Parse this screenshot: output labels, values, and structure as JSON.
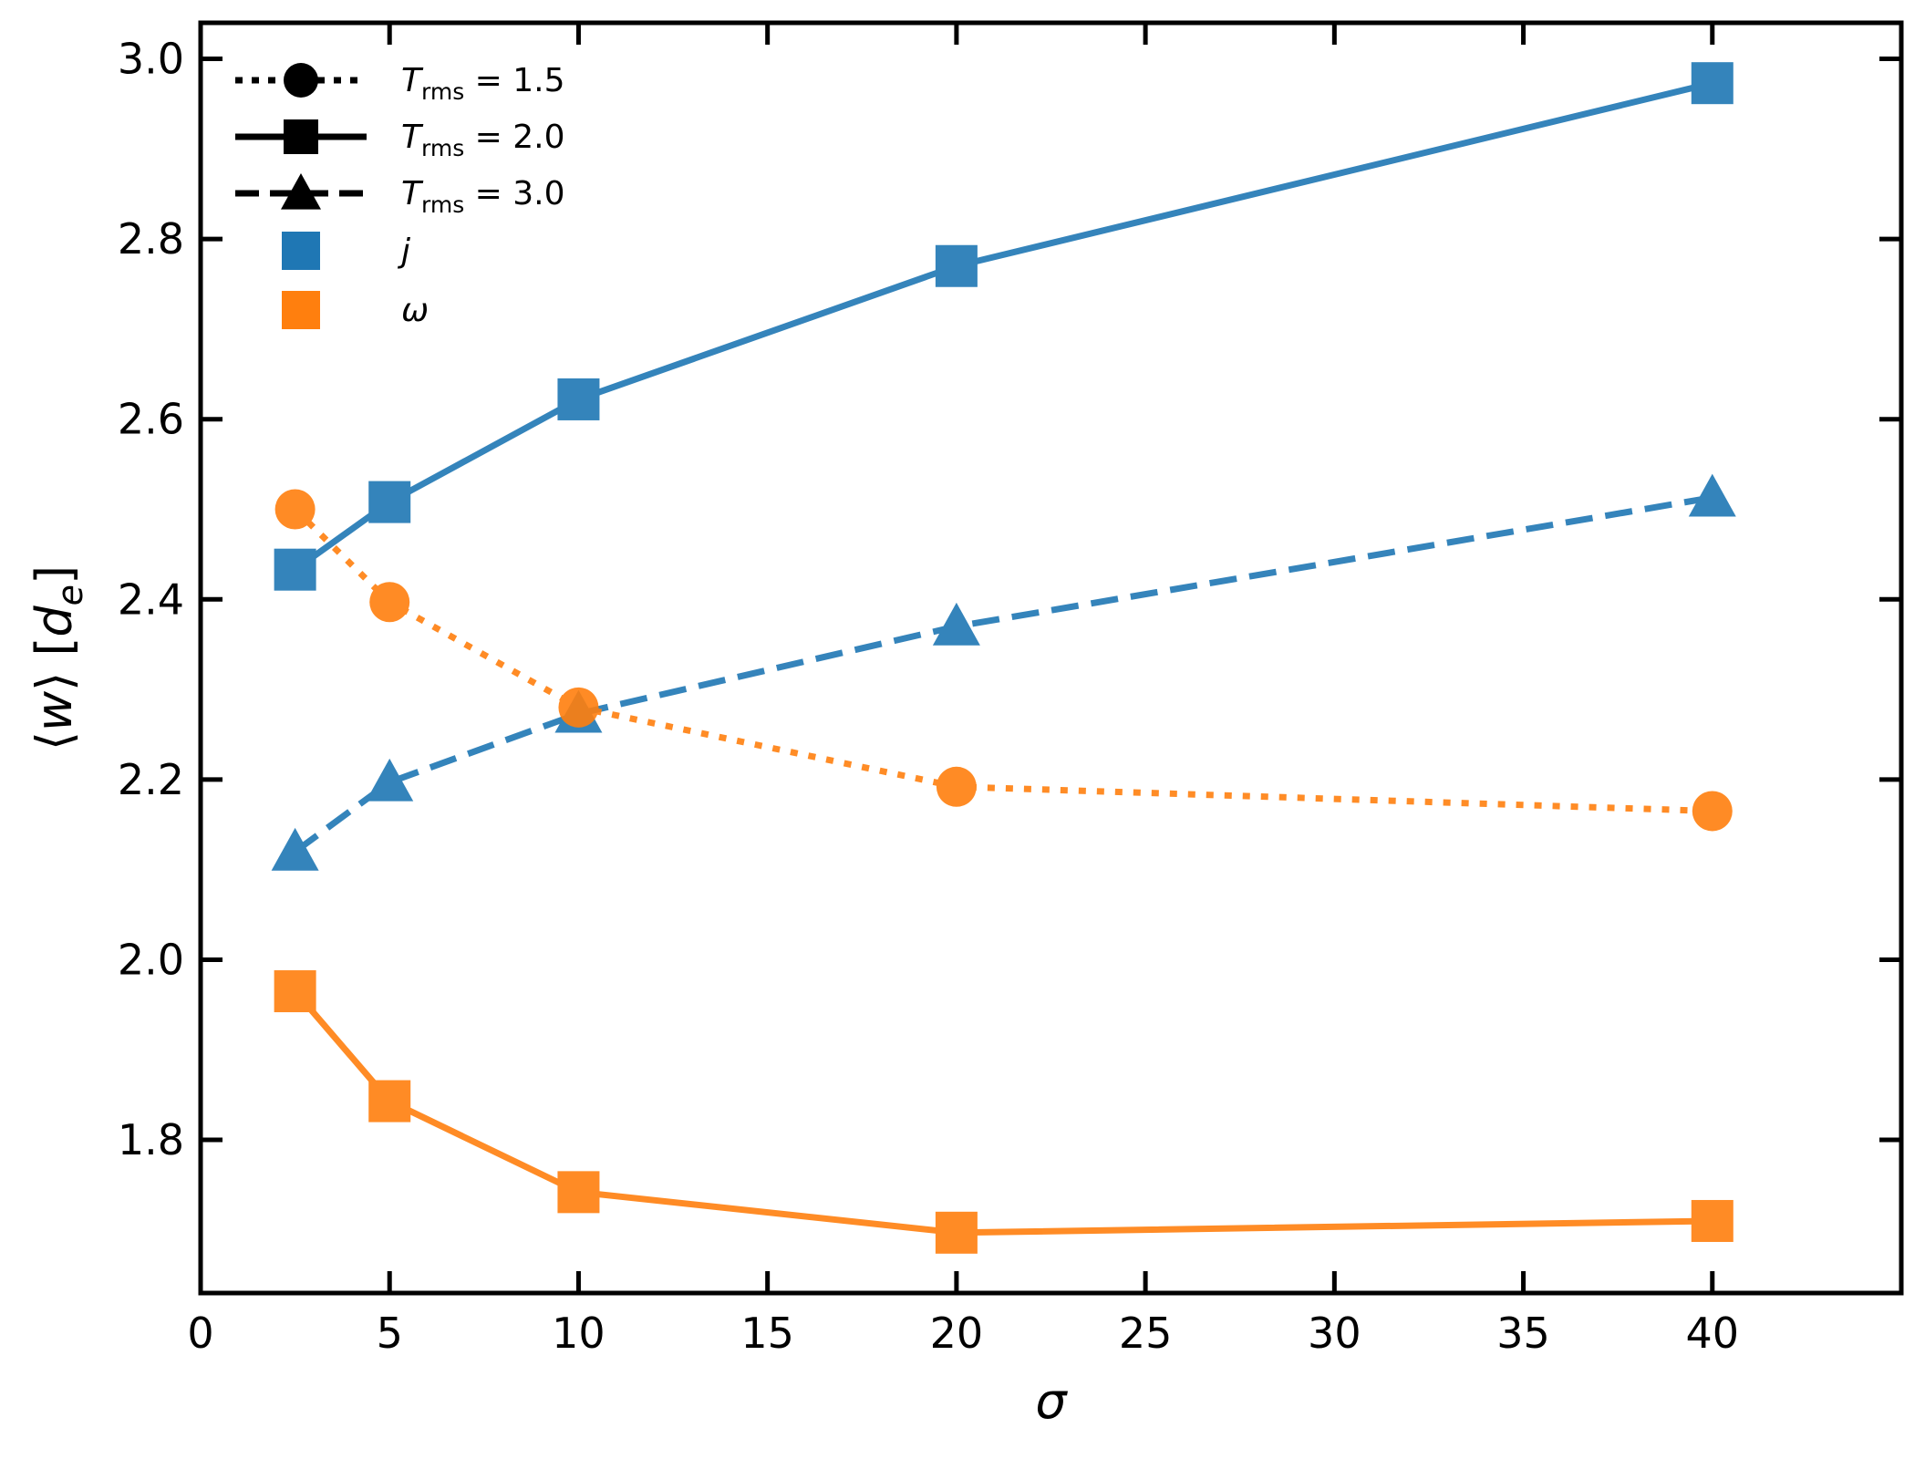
{
  "chart_data": {
    "type": "line",
    "xlabel": "σ",
    "ylabel_parts": {
      "prefix": "⟨",
      "var": "w",
      "mid": "⟩ [",
      "unit": "d",
      "unit_sub": "e",
      "suffix": "]"
    },
    "xlim": [
      0,
      45
    ],
    "ylim": [
      1.63,
      3.04
    ],
    "xticks": [
      0,
      5,
      10,
      15,
      20,
      25,
      30,
      35,
      40
    ],
    "xtick_labels": [
      "0",
      "5",
      "10",
      "15",
      "20",
      "25",
      "30",
      "35",
      "40"
    ],
    "yticks": [
      1.8,
      2.0,
      2.2,
      2.4,
      2.6,
      2.8,
      3.0
    ],
    "ytick_labels": [
      "1.8",
      "2.0",
      "2.2",
      "2.4",
      "2.6",
      "2.8",
      "3.0"
    ],
    "grid": false,
    "legend_position": "top-left",
    "colors": {
      "j": "#1f77b4",
      "omega": "#ff7f0e"
    },
    "x": [
      2.5,
      5,
      10,
      20,
      40
    ],
    "series": [
      {
        "id": "j-trms-2.0",
        "quantity": "j",
        "trms": "2.0",
        "marker": "square",
        "linestyle": "solid",
        "values": [
          2.433,
          2.508,
          2.622,
          2.77,
          2.973
        ]
      },
      {
        "id": "j-trms-3.0",
        "quantity": "j",
        "trms": "3.0",
        "marker": "triangle",
        "linestyle": "dashed",
        "values": [
          2.12,
          2.197,
          2.273,
          2.37,
          2.513
        ]
      },
      {
        "id": "omega-trms-1.5",
        "quantity": "omega",
        "trms": "1.5",
        "marker": "circle",
        "linestyle": "dotted",
        "values": [
          2.5,
          2.397,
          2.28,
          2.192,
          2.165
        ]
      },
      {
        "id": "omega-trms-2.0",
        "quantity": "omega",
        "trms": "2.0",
        "marker": "square",
        "linestyle": "solid",
        "values": [
          1.965,
          1.843,
          1.742,
          1.697,
          1.71
        ]
      }
    ],
    "legend": [
      {
        "kind": "style",
        "marker": "circle",
        "linestyle": "dotted",
        "label_var": "T",
        "label_sub": "rms",
        "label_rest": " = 1.5"
      },
      {
        "kind": "style",
        "marker": "square",
        "linestyle": "solid",
        "label_var": "T",
        "label_sub": "rms",
        "label_rest": " = 2.0"
      },
      {
        "kind": "style",
        "marker": "triangle",
        "linestyle": "dashed",
        "label_var": "T",
        "label_sub": "rms",
        "label_rest": " = 3.0"
      },
      {
        "kind": "color",
        "color_key": "j",
        "label_var": "j",
        "label_sub": "",
        "label_rest": ""
      },
      {
        "kind": "color",
        "color_key": "omega",
        "label_var": "ω",
        "label_sub": "",
        "label_rest": ""
      }
    ]
  }
}
